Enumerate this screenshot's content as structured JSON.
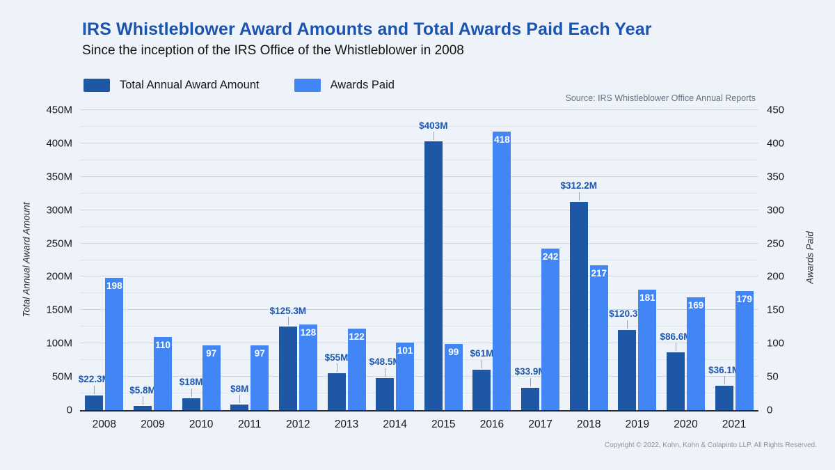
{
  "header": {
    "title": "IRS Whistleblower Award Amounts and Total Awards Paid Each Year",
    "subtitle": "Since the inception of the IRS Office of the Whistleblower in 2008"
  },
  "legend": [
    {
      "label": "Total Annual Award Amount",
      "color": "#1e57a6"
    },
    {
      "label": "Awards Paid",
      "color": "#4285f4"
    }
  ],
  "source_note": "Source: IRS Whistleblower Office Annual Reports",
  "footer": {
    "copyright": "Copyright © 2022, Kohn, Kohn & Colapinto LLP. All Rights Reserved."
  },
  "colors": {
    "background": "#eef3fa",
    "title": "#1b54b0",
    "dark_bar": "#1e57a6",
    "light_bar": "#4285f4",
    "gridline": "#d2d8e1",
    "baseline": "#262b33"
  },
  "chart_data": {
    "type": "bar",
    "title": "IRS Whistleblower Award Amounts and Total Awards Paid Each Year",
    "subtitle": "Since the inception of the IRS Office of the Whistleblower in 2008",
    "grid": true,
    "legend_position": "top-left",
    "categories": [
      "2008",
      "2009",
      "2010",
      "2011",
      "2012",
      "2013",
      "2014",
      "2015",
      "2016",
      "2017",
      "2018",
      "2019",
      "2020",
      "2021"
    ],
    "series": [
      {
        "name": "Total Annual Award Amount",
        "axis": "left",
        "color": "#1e57a6",
        "values": [
          22.3,
          5.8,
          18,
          8,
          125.3,
          55,
          48.5,
          403,
          61,
          33.9,
          312.2,
          120.3,
          86.6,
          36.1
        ],
        "labels": [
          "$22.3M",
          "$5.8M",
          "$18M",
          "$8M",
          "$125.3M",
          "$55M",
          "$48.5M",
          "$403M",
          "$61M",
          "$33.9M",
          "$312.2M",
          "$120.3M",
          "$86.6M",
          "$36.1M"
        ]
      },
      {
        "name": "Awards Paid",
        "axis": "right",
        "color": "#4285f4",
        "values": [
          198,
          110,
          97,
          97,
          128,
          122,
          101,
          99,
          418,
          242,
          217,
          181,
          169,
          179
        ],
        "labels": [
          "198",
          "110",
          "97",
          "97",
          "128",
          "122",
          "101",
          "99",
          "418",
          "242",
          "217",
          "181",
          "169",
          "179"
        ]
      }
    ],
    "left_axis": {
      "title": "Total Annual Award Amount",
      "min": 0,
      "max": 450,
      "gridline_step": 25,
      "label_step": 50,
      "tick_values": [
        450,
        400,
        350,
        300,
        250,
        200,
        150,
        100,
        50,
        0
      ],
      "tick_labels": [
        "450M",
        "400M",
        "350M",
        "300M",
        "250M",
        "200M",
        "150M",
        "100M",
        "50M",
        "0"
      ]
    },
    "right_axis": {
      "title": "Awards Paid",
      "min": 0,
      "max": 450,
      "tick_values": [
        450,
        400,
        350,
        300,
        250,
        200,
        150,
        100,
        50,
        0
      ],
      "tick_labels": [
        "450",
        "400",
        "350",
        "300",
        "250",
        "200",
        "150",
        "100",
        "50",
        "0"
      ]
    }
  }
}
